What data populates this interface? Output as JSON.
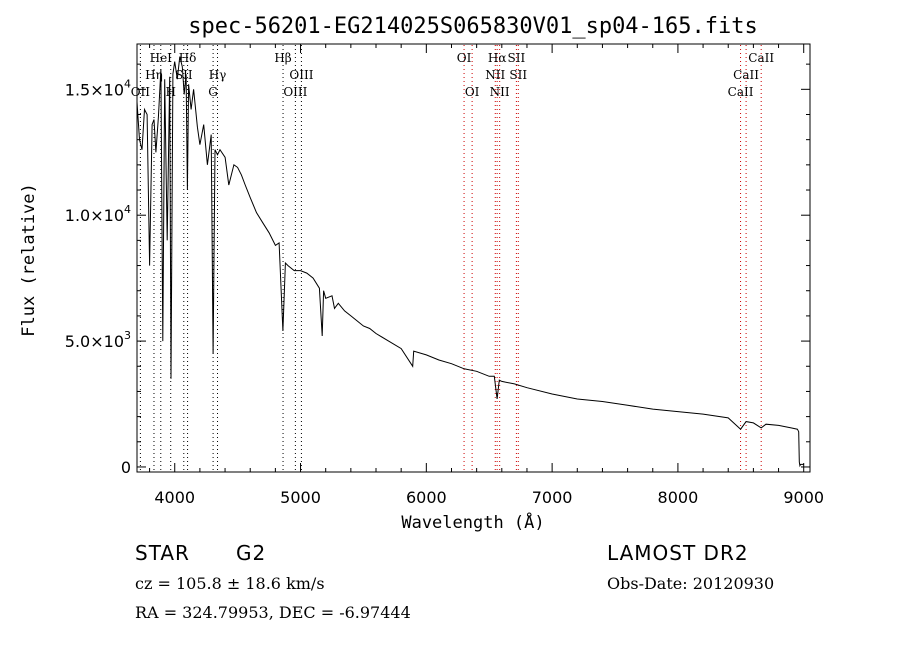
{
  "chart_data": {
    "type": "line",
    "title": "spec-56201-EG214025S065830V01_sp04-165.fits",
    "xlabel": "Wavelength (Å)",
    "ylabel": "Flux (relative)",
    "xlim": [
      3700,
      9050
    ],
    "ylim": [
      -200,
      16800
    ],
    "x_ticks": [
      4000,
      5000,
      6000,
      7000,
      8000,
      9000
    ],
    "x_tick_labels": [
      "4000",
      "5000",
      "6000",
      "7000",
      "8000",
      "9000"
    ],
    "y_ticks": [
      0,
      5000,
      10000,
      15000
    ],
    "y_tick_labels": [
      {
        "mant": "0",
        "exp": ""
      },
      {
        "mant": "5.0×10",
        "exp": "3"
      },
      {
        "mant": "1.0×10",
        "exp": "4"
      },
      {
        "mant": "1.5×10",
        "exp": "4"
      }
    ],
    "series": [
      {
        "values_x": [
          3700,
          3720,
          3740,
          3760,
          3780,
          3800,
          3820,
          3835,
          3850,
          3870,
          3890,
          3905,
          3920,
          3940,
          3960,
          3970,
          3985,
          4000,
          4020,
          4040,
          4060,
          4075,
          4090,
          4101,
          4110,
          4130,
          4150,
          4180,
          4200,
          4230,
          4260,
          4290,
          4305,
          4320,
          4340,
          4360,
          4400,
          4430,
          4470,
          4500,
          4530,
          4560,
          4600,
          4650,
          4700,
          4750,
          4800,
          4830,
          4860,
          4880,
          4900,
          4950,
          5000,
          5050,
          5100,
          5150,
          5172,
          5183,
          5200,
          5250,
          5270,
          5300,
          5350,
          5400,
          5450,
          5500,
          5550,
          5600,
          5700,
          5800,
          5892,
          5900,
          6000,
          6100,
          6200,
          6300,
          6400,
          6500,
          6540,
          6563,
          6580,
          6600,
          6700,
          6800,
          7000,
          7200,
          7400,
          7600,
          7800,
          8000,
          8200,
          8400,
          8498,
          8542,
          8600,
          8662,
          8700,
          8800,
          8900,
          8950,
          8960,
          8965,
          8970,
          8975,
          9000
        ],
        "values_y": [
          14500,
          13000,
          12600,
          14200,
          14000,
          8000,
          13600,
          13800,
          12500,
          13900,
          15800,
          5000,
          15400,
          9000,
          15500,
          3500,
          15600,
          16100,
          15400,
          16300,
          15900,
          14800,
          15600,
          11000,
          15200,
          14200,
          15000,
          13500,
          12800,
          13600,
          12000,
          13200,
          4500,
          12600,
          12400,
          12600,
          12300,
          11200,
          12000,
          11900,
          11600,
          11200,
          10700,
          10100,
          9700,
          9300,
          8800,
          8900,
          5400,
          8100,
          8000,
          7800,
          7800,
          7700,
          7500,
          7100,
          5200,
          7000,
          6700,
          6800,
          6300,
          6500,
          6200,
          6000,
          5800,
          5600,
          5500,
          5300,
          5000,
          4700,
          4000,
          4600,
          4450,
          4250,
          4100,
          3900,
          3800,
          3600,
          3600,
          2700,
          3450,
          3400,
          3300,
          3150,
          2900,
          2700,
          2600,
          2450,
          2300,
          2200,
          2100,
          1950,
          1500,
          1800,
          1750,
          1550,
          1700,
          1650,
          1550,
          1500,
          1400,
          200,
          50,
          100,
          100
        ]
      }
    ],
    "lines": [
      {
        "label": "OII",
        "wl": 3727,
        "row": 3,
        "color": "#000000"
      },
      {
        "label": "Hη",
        "wl": 3835,
        "row": 2,
        "color": "#000000"
      },
      {
        "label": "HeI",
        "wl": 3889,
        "row": 1,
        "color": "#000000"
      },
      {
        "label": "H",
        "wl": 3968,
        "row": 3,
        "color": "#000000"
      },
      {
        "label": "Hδ",
        "wl": 4102,
        "row": 1,
        "color": "#000000"
      },
      {
        "label": "SII",
        "wl": 4072,
        "row": 2,
        "color": "#000000"
      },
      {
        "label": "Hγ",
        "wl": 4340,
        "row": 2,
        "color": "#000000"
      },
      {
        "label": "G",
        "wl": 4305,
        "row": 3,
        "color": "#000000"
      },
      {
        "label": "Hβ",
        "wl": 4861,
        "row": 1,
        "color": "#000000"
      },
      {
        "label": "OIII",
        "wl": 4959,
        "row": 3,
        "color": "#000000"
      },
      {
        "label": "OIII",
        "wl": 5007,
        "row": 2,
        "color": "#000000"
      },
      {
        "label": "OI",
        "wl": 6300,
        "row": 1,
        "color": "#cc0000"
      },
      {
        "label": "OI",
        "wl": 6364,
        "row": 3,
        "color": "#cc0000"
      },
      {
        "label": "Hα",
        "wl": 6563,
        "row": 1,
        "color": "#cc0000"
      },
      {
        "label": "NII",
        "wl": 6548,
        "row": 2,
        "color": "#cc0000"
      },
      {
        "label": "NII",
        "wl": 6583,
        "row": 3,
        "color": "#cc0000"
      },
      {
        "label": "SII",
        "wl": 6716,
        "row": 1,
        "color": "#cc0000"
      },
      {
        "label": "SII",
        "wl": 6731,
        "row": 2,
        "color": "#cc0000"
      },
      {
        "label": "CaII",
        "wl": 8498,
        "row": 3,
        "color": "#cc0000"
      },
      {
        "label": "CaII",
        "wl": 8542,
        "row": 2,
        "color": "#cc0000"
      },
      {
        "label": "CaII",
        "wl": 8662,
        "row": 1,
        "color": "#cc0000"
      }
    ],
    "grid": false,
    "legend": "none"
  },
  "info": {
    "obj_type": "STAR",
    "subclass": "G2",
    "cz": "cz = 105.8 ± 18.6 km/s",
    "radec": "RA = 324.79953, DEC =  -6.97444",
    "survey": "LAMOST DR2",
    "obs_date": "Obs-Date: 20120930"
  }
}
